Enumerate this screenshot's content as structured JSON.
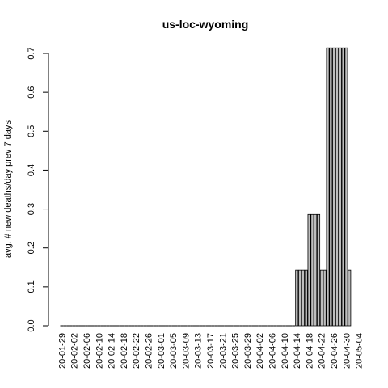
{
  "chart_data": {
    "type": "bar",
    "title": "us-loc-wyoming",
    "xlabel": "",
    "ylabel": "avg. # new deaths/day prev  7  days",
    "ylim": [
      0,
      0.72
    ],
    "y_ticks": [
      0.0,
      0.1,
      0.2,
      0.3,
      0.4,
      0.5,
      0.6,
      0.7
    ],
    "y_tick_labels": [
      "0.0",
      "0.1",
      "0.2",
      "0.3",
      "0.4",
      "0.5",
      "0.6",
      "0.7"
    ],
    "x_tick_labels": [
      "20-01-29",
      "20-02-02",
      "20-02-06",
      "20-02-10",
      "20-02-14",
      "20-02-18",
      "20-02-22",
      "20-02-26",
      "20-03-01",
      "20-03-05",
      "20-03-09",
      "20-03-13",
      "20-03-17",
      "20-03-21",
      "20-03-25",
      "20-03-29",
      "20-04-02",
      "20-04-06",
      "20-04-10",
      "20-04-14",
      "20-04-18",
      "20-04-22",
      "20-04-26",
      "20-04-30",
      "20-05-04"
    ],
    "bar_fill": "#bebebe",
    "start_date": "2020-01-29",
    "values": [
      0,
      0,
      0,
      0,
      0,
      0,
      0,
      0,
      0,
      0,
      0,
      0,
      0,
      0,
      0,
      0,
      0,
      0,
      0,
      0,
      0,
      0,
      0,
      0,
      0,
      0,
      0,
      0,
      0,
      0,
      0,
      0,
      0,
      0,
      0,
      0,
      0,
      0,
      0,
      0,
      0,
      0,
      0,
      0,
      0,
      0,
      0,
      0,
      0,
      0,
      0,
      0,
      0,
      0,
      0,
      0,
      0,
      0,
      0,
      0,
      0,
      0,
      0,
      0,
      0,
      0,
      0,
      0,
      0,
      0,
      0,
      0,
      0,
      0,
      0,
      0,
      0.143,
      0.143,
      0.143,
      0.143,
      0.286,
      0.286,
      0.286,
      0.286,
      0.143,
      0.143,
      0.714,
      0.714,
      0.714,
      0.714,
      0.714,
      0.714,
      0.714,
      0.143
    ]
  }
}
